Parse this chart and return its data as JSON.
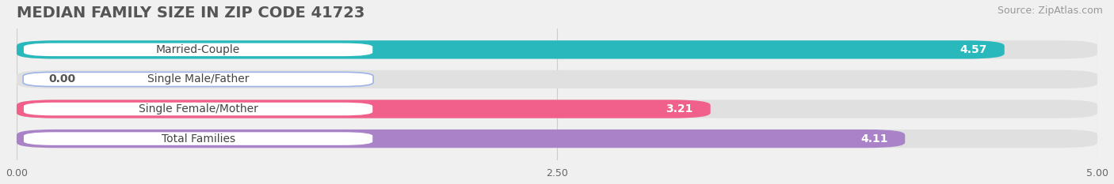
{
  "title": "MEDIAN FAMILY SIZE IN ZIP CODE 41723",
  "source": "Source: ZipAtlas.com",
  "categories": [
    "Married-Couple",
    "Single Male/Father",
    "Single Female/Mother",
    "Total Families"
  ],
  "values": [
    4.57,
    0.0,
    3.21,
    4.11
  ],
  "bar_colors": [
    "#29b8bc",
    "#9db4e8",
    "#f0608a",
    "#aa82c8"
  ],
  "xlim": [
    0,
    5.0
  ],
  "xticks": [
    0.0,
    2.5,
    5.0
  ],
  "xticklabels": [
    "0.00",
    "2.50",
    "5.00"
  ],
  "background_color": "#f0f0f0",
  "bar_background_color": "#e0e0e0",
  "title_fontsize": 14,
  "source_fontsize": 9,
  "label_fontsize": 10,
  "value_fontsize": 10,
  "bar_height": 0.62
}
